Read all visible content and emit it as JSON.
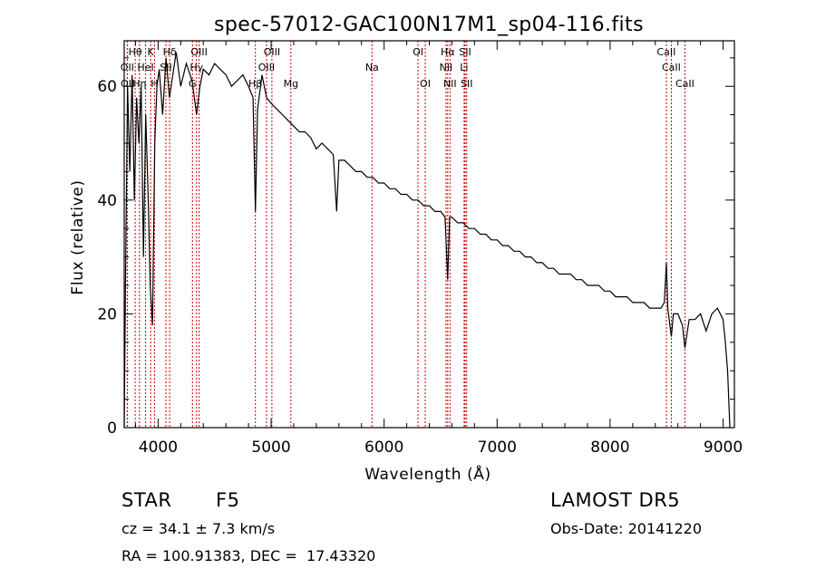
{
  "chart_data": {
    "type": "line",
    "title": "spec-57012-GAC100N17M1_sp04-116.fits",
    "xlabel": "Wavelength (Å)",
    "ylabel": "Flux (relative)",
    "xlim": [
      3700,
      9100
    ],
    "ylim": [
      0,
      68
    ],
    "x_ticks": [
      4000,
      5000,
      6000,
      7000,
      8000,
      9000
    ],
    "x_tick_labels": [
      "4000",
      "5000",
      "6000",
      "7000",
      "8000",
      "9000"
    ],
    "y_ticks": [
      0,
      20,
      40,
      60
    ],
    "y_tick_labels": [
      "0",
      "20",
      "40",
      "60"
    ],
    "grid": false,
    "series": [
      {
        "x": [
          3700,
          3710,
          3730,
          3750,
          3770,
          3790,
          3810,
          3830,
          3850,
          3870,
          3890,
          3910,
          3930,
          3950,
          3970,
          3990,
          4010,
          4040,
          4070,
          4100,
          4130,
          4160,
          4200,
          4250,
          4300,
          4340,
          4370,
          4400,
          4450,
          4500,
          4550,
          4600,
          4650,
          4700,
          4750,
          4800,
          4840,
          4861,
          4880,
          4920,
          4960,
          5000,
          5050,
          5100,
          5150,
          5200,
          5250,
          5300,
          5350,
          5400,
          5450,
          5500,
          5550,
          5580,
          5600,
          5650,
          5700,
          5750,
          5800,
          5850,
          5900,
          5950,
          6000,
          6050,
          6100,
          6150,
          6200,
          6250,
          6300,
          6350,
          6400,
          6450,
          6500,
          6540,
          6563,
          6580,
          6600,
          6650,
          6700,
          6750,
          6800,
          6850,
          6900,
          6950,
          7000,
          7050,
          7100,
          7150,
          7200,
          7250,
          7300,
          7350,
          7400,
          7450,
          7500,
          7550,
          7600,
          7650,
          7700,
          7750,
          7800,
          7850,
          7900,
          7950,
          8000,
          8050,
          8100,
          8150,
          8200,
          8250,
          8300,
          8350,
          8400,
          8450,
          8480,
          8498,
          8510,
          8542,
          8560,
          8600,
          8640,
          8662,
          8700,
          8750,
          8800,
          8850,
          8900,
          8950,
          9000,
          9020,
          9040,
          9060
        ],
        "values": [
          0,
          22,
          60,
          45,
          62,
          40,
          58,
          50,
          60,
          30,
          55,
          42,
          25,
          18,
          50,
          60,
          63,
          55,
          65,
          58,
          62,
          66,
          60,
          64,
          61,
          55,
          60,
          63,
          62,
          64,
          63,
          62,
          60,
          61,
          62,
          60,
          58,
          38,
          56,
          62,
          58,
          57,
          56,
          55,
          54,
          53,
          52,
          52,
          51,
          49,
          50,
          49,
          48,
          38,
          47,
          47,
          46,
          45,
          45,
          44,
          44,
          43,
          43,
          42,
          42,
          41,
          41,
          40,
          40,
          39,
          39,
          38,
          38,
          37,
          26,
          37,
          37,
          36,
          36,
          35,
          35,
          34,
          34,
          33,
          33,
          32,
          32,
          31,
          31,
          30,
          30,
          29,
          29,
          28,
          28,
          27,
          27,
          27,
          26,
          26,
          25,
          25,
          25,
          24,
          24,
          23,
          23,
          23,
          22,
          22,
          22,
          21,
          21,
          21,
          22,
          29,
          21,
          16,
          20,
          20,
          18,
          14,
          19,
          19,
          20,
          17,
          20,
          21,
          19,
          15,
          10,
          0
        ]
      }
    ],
    "lines": [
      {
        "label": "Hθ",
        "x": 3797,
        "row": 1
      },
      {
        "label": "K",
        "x": 3934,
        "row": 1
      },
      {
        "label": "Hδ",
        "x": 4102,
        "row": 1
      },
      {
        "label": "OIII",
        "x": 4363,
        "row": 1
      },
      {
        "label": "OIII",
        "x": 5007,
        "row": 1
      },
      {
        "label": "OI",
        "x": 6300,
        "row": 1
      },
      {
        "label": "Hα",
        "x": 6563,
        "row": 1
      },
      {
        "label": "SII",
        "x": 6717,
        "row": 1
      },
      {
        "label": "CaII",
        "x": 8498,
        "row": 1
      },
      {
        "label": "OII",
        "x": 3727,
        "row": 2
      },
      {
        "label": "HeI",
        "x": 3889,
        "row": 2
      },
      {
        "label": "SII",
        "x": 4069,
        "row": 2
      },
      {
        "label": "Hγ",
        "x": 4340,
        "row": 2
      },
      {
        "label": "OIII",
        "x": 4959,
        "row": 2
      },
      {
        "label": "Na",
        "x": 5893,
        "row": 2
      },
      {
        "label": "NII",
        "x": 6548,
        "row": 2
      },
      {
        "label": "Li",
        "x": 6708,
        "row": 2
      },
      {
        "label": "CaII",
        "x": 8542,
        "row": 2
      },
      {
        "label": "OII",
        "x": 3729,
        "row": 3
      },
      {
        "label": "Hη",
        "x": 3835,
        "row": 3
      },
      {
        "label": "H",
        "x": 3968,
        "row": 3
      },
      {
        "label": "G",
        "x": 4304,
        "row": 3
      },
      {
        "label": "Hβ",
        "x": 4861,
        "row": 3
      },
      {
        "label": "Mg",
        "x": 5175,
        "row": 3
      },
      {
        "label": "OI",
        "x": 6364,
        "row": 3
      },
      {
        "label": "NII",
        "x": 6583,
        "row": 3
      },
      {
        "label": "SII",
        "x": 6731,
        "row": 3
      },
      {
        "label": "CaII",
        "x": 8662,
        "row": 3
      }
    ],
    "line_color": "#cc0000"
  },
  "info": {
    "class_label": "STAR",
    "subclass": "F5",
    "survey": "LAMOST DR5",
    "cz_line": "cz = 34.1 ± 7.3 km/s",
    "obs_date": "Obs-Date: 20141220",
    "coords": "RA = 100.91383, DEC =  17.43320"
  }
}
